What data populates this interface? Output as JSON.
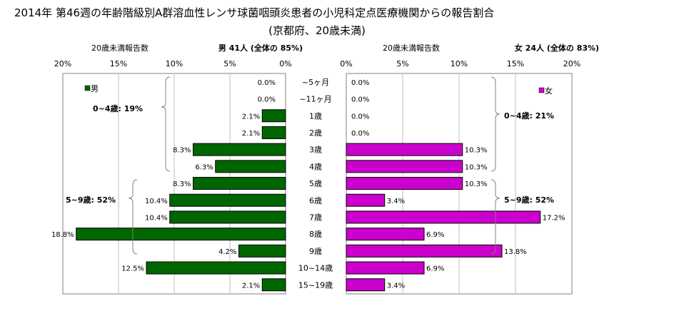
{
  "title_line1": "2014年 第46週の年齢階級別A群溶血性レンサ球菌咽頭炎患者の小児科定点医療機関からの報告割合",
  "title_line2": "(京都府、20歳未満)",
  "colors": {
    "male": "#006600",
    "female": "#cc00cc",
    "grid": "#bfbfbf",
    "axis": "#808080"
  },
  "chart_data": [
    {
      "type": "bar",
      "orientation": "horizontal",
      "direction": "right-to-left",
      "subtitle": "20歳未満報告数",
      "header": "男 41人 (全体の 85%)",
      "xlim": [
        0,
        20
      ],
      "ticks": [
        "20%",
        "15%",
        "10%",
        "5%",
        "0%"
      ],
      "tick_values": [
        20,
        15,
        10,
        5,
        0
      ],
      "categories": [
        "~5ヶ月",
        "~11ヶ月",
        "1歳",
        "2歳",
        "3歳",
        "4歳",
        "5歳",
        "6歳",
        "7歳",
        "8歳",
        "9歳",
        "10~14歳",
        "15~19歳"
      ],
      "series": [
        {
          "name": "男",
          "values": [
            0.0,
            0.0,
            2.1,
            2.1,
            8.3,
            6.3,
            8.3,
            10.4,
            10.4,
            18.8,
            4.2,
            12.5,
            2.1
          ],
          "labels": [
            "0.0%",
            "0.0%",
            "2.1%",
            "2.1%",
            "8.3%",
            "6.3%",
            "8.3%",
            "10.4%",
            "10.4%",
            "18.8%",
            "4.2%",
            "12.5%",
            "2.1%"
          ]
        }
      ],
      "annotations": [
        "0~4歳: 19%",
        "5~9歳: 52%"
      ]
    },
    {
      "type": "bar",
      "orientation": "horizontal",
      "direction": "left-to-right",
      "subtitle": "20歳未満報告数",
      "header": "女 24人 (全体の 83%)",
      "xlim": [
        0,
        20
      ],
      "ticks": [
        "0%",
        "5%",
        "10%",
        "15%",
        "20%"
      ],
      "tick_values": [
        0,
        5,
        10,
        15,
        20
      ],
      "categories": [
        "~5ヶ月",
        "~11ヶ月",
        "1歳",
        "2歳",
        "3歳",
        "4歳",
        "5歳",
        "6歳",
        "7歳",
        "8歳",
        "9歳",
        "10~14歳",
        "15~19歳"
      ],
      "series": [
        {
          "name": "女",
          "values": [
            0.0,
            0.0,
            0.0,
            0.0,
            10.3,
            10.3,
            10.3,
            3.4,
            17.2,
            6.9,
            13.8,
            6.9,
            3.4
          ],
          "labels": [
            "0.0%",
            "0.0%",
            "0.0%",
            "0.0%",
            "10.3%",
            "10.3%",
            "10.3%",
            "3.4%",
            "17.2%",
            "6.9%",
            "13.8%",
            "6.9%",
            "3.4%"
          ]
        }
      ],
      "annotations": [
        "0~4歳: 21%",
        "5~9歳: 52%"
      ]
    }
  ]
}
